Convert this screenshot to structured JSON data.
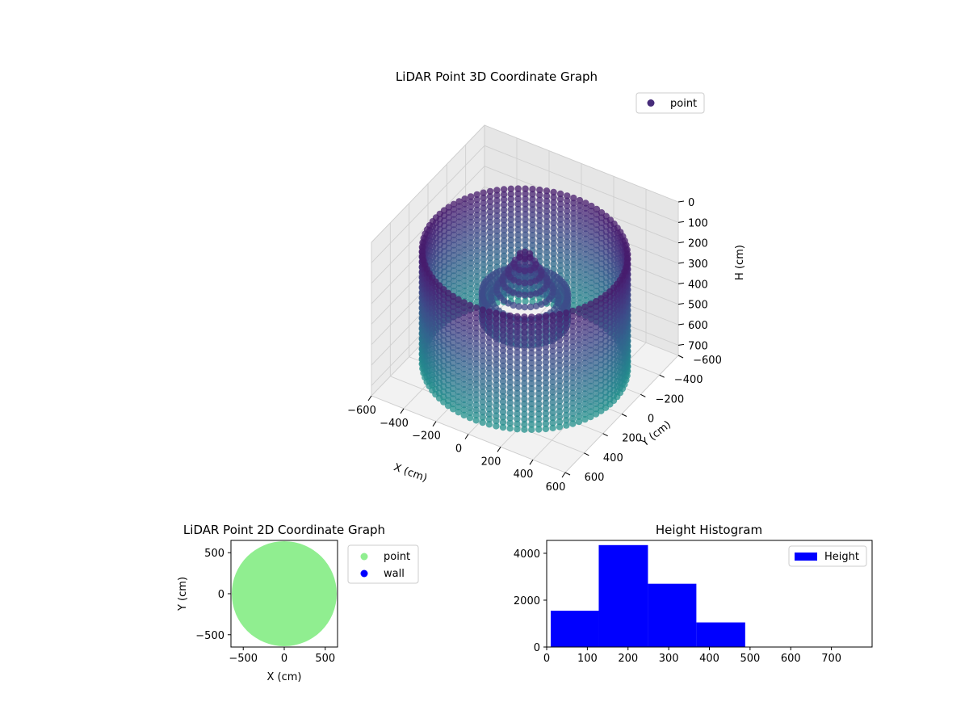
{
  "chart_data": [
    {
      "type": "scatter3d",
      "title": "LiDAR Point 3D Coordinate Graph",
      "xlabel": "X (cm)",
      "ylabel": "Y (cm)",
      "zlabel": "H (cm)",
      "xlim": [
        -600,
        600
      ],
      "ylim": [
        -600,
        600
      ],
      "zlim": [
        0,
        750
      ],
      "z_inverted": true,
      "xticks": [
        -600,
        -400,
        -200,
        0,
        200,
        400,
        600
      ],
      "yticks": [
        -600,
        -400,
        -200,
        0,
        200,
        400,
        600
      ],
      "zticks": [
        0,
        100,
        200,
        300,
        400,
        500,
        600,
        700
      ],
      "legend": [
        "point"
      ],
      "legend_position": "upper-right",
      "colormap": "viridis",
      "legend_color": "#472c7a",
      "grid": true,
      "description_shape": "ring",
      "outer_ring": {
        "radius": 550,
        "h_top": 150,
        "h_bottom": 700
      },
      "inner_ring": {
        "radius": 230,
        "h_top": 350,
        "h_bottom": 470
      },
      "center_peak_h": 120
    },
    {
      "type": "scatter",
      "title": "LiDAR Point 2D Coordinate Graph",
      "xlabel": "X (cm)",
      "ylabel": "Y (cm)",
      "xlim": [
        -650,
        650
      ],
      "ylim": [
        -650,
        650
      ],
      "xticks": [
        -500,
        0,
        500
      ],
      "yticks": [
        -500,
        0,
        500
      ],
      "filled_disk_radius": 640,
      "legend": [
        {
          "name": "point",
          "color": "#90ee90"
        },
        {
          "name": "wall",
          "color": "#0000ff"
        }
      ],
      "legend_position": "outside-right"
    },
    {
      "type": "histogram",
      "title": "Height Histogram",
      "xlim": [
        0,
        800
      ],
      "ylim": [
        0,
        4550
      ],
      "xticks": [
        0,
        100,
        200,
        300,
        400,
        500,
        600,
        700
      ],
      "yticks": [
        0,
        2000,
        4000
      ],
      "bins": [
        {
          "start": 10,
          "end": 128,
          "count": 1550
        },
        {
          "start": 128,
          "end": 249,
          "count": 4350
        },
        {
          "start": 249,
          "end": 368,
          "count": 2700
        },
        {
          "start": 368,
          "end": 488,
          "count": 1050
        }
      ],
      "color": "#0000ff",
      "legend": [
        "Height"
      ],
      "legend_position": "upper-right",
      "grid": false
    }
  ]
}
